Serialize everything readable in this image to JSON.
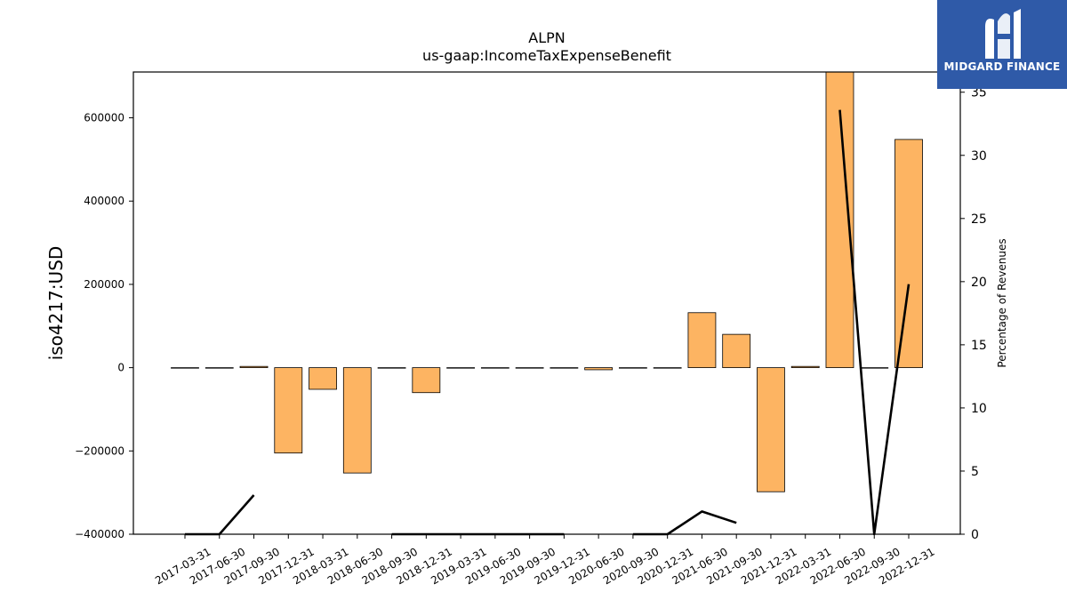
{
  "chart_data": {
    "type": "bar",
    "title": "ALPN",
    "subtitle": "us-gaap:IncomeTaxExpenseBenefit",
    "ylabel": "iso4217:USD",
    "y2label": "Percentage of Revenues",
    "ylim": [
      -400000,
      710000
    ],
    "y2lim": [
      0,
      36.6
    ],
    "yticks": [
      -400000,
      -200000,
      0,
      200000,
      400000,
      600000
    ],
    "yticklabels": [
      "−400000",
      "−200000",
      "0",
      "200000",
      "400000",
      "600000"
    ],
    "y2ticks": [
      0,
      5,
      10,
      15,
      20,
      25,
      30,
      35
    ],
    "categories": [
      "2017-03-31",
      "2017-06-30",
      "2017-09-30",
      "2017-12-31",
      "2018-03-31",
      "2018-06-30",
      "2018-09-30",
      "2018-12-31",
      "2019-03-31",
      "2019-06-30",
      "2019-09-30",
      "2019-12-31",
      "2020-06-30",
      "2020-09-30",
      "2020-12-31",
      "2021-06-30",
      "2021-09-30",
      "2021-12-31",
      "2022-03-31",
      "2022-06-30",
      "2022-09-30",
      "2022-12-31"
    ],
    "series": [
      {
        "type": "bar",
        "axis": "left",
        "color": "#fdb462",
        "values": [
          0,
          0,
          3000,
          -205000,
          -52000,
          -253000,
          0,
          -60000,
          0,
          0,
          0,
          0,
          -5000,
          0,
          0,
          132000,
          80000,
          -298000,
          3000,
          715000,
          0,
          548000
        ]
      },
      {
        "type": "line",
        "axis": "right",
        "color": "#000000",
        "values": [
          0,
          0,
          3.1,
          null,
          null,
          null,
          0,
          0,
          0,
          0,
          0,
          0,
          null,
          0,
          0,
          1.8,
          0.9,
          null,
          null,
          33.6,
          0,
          19.8
        ]
      }
    ]
  },
  "logo": {
    "text": "MIDGARD FINANCE",
    "color": "#2f5aa8"
  }
}
